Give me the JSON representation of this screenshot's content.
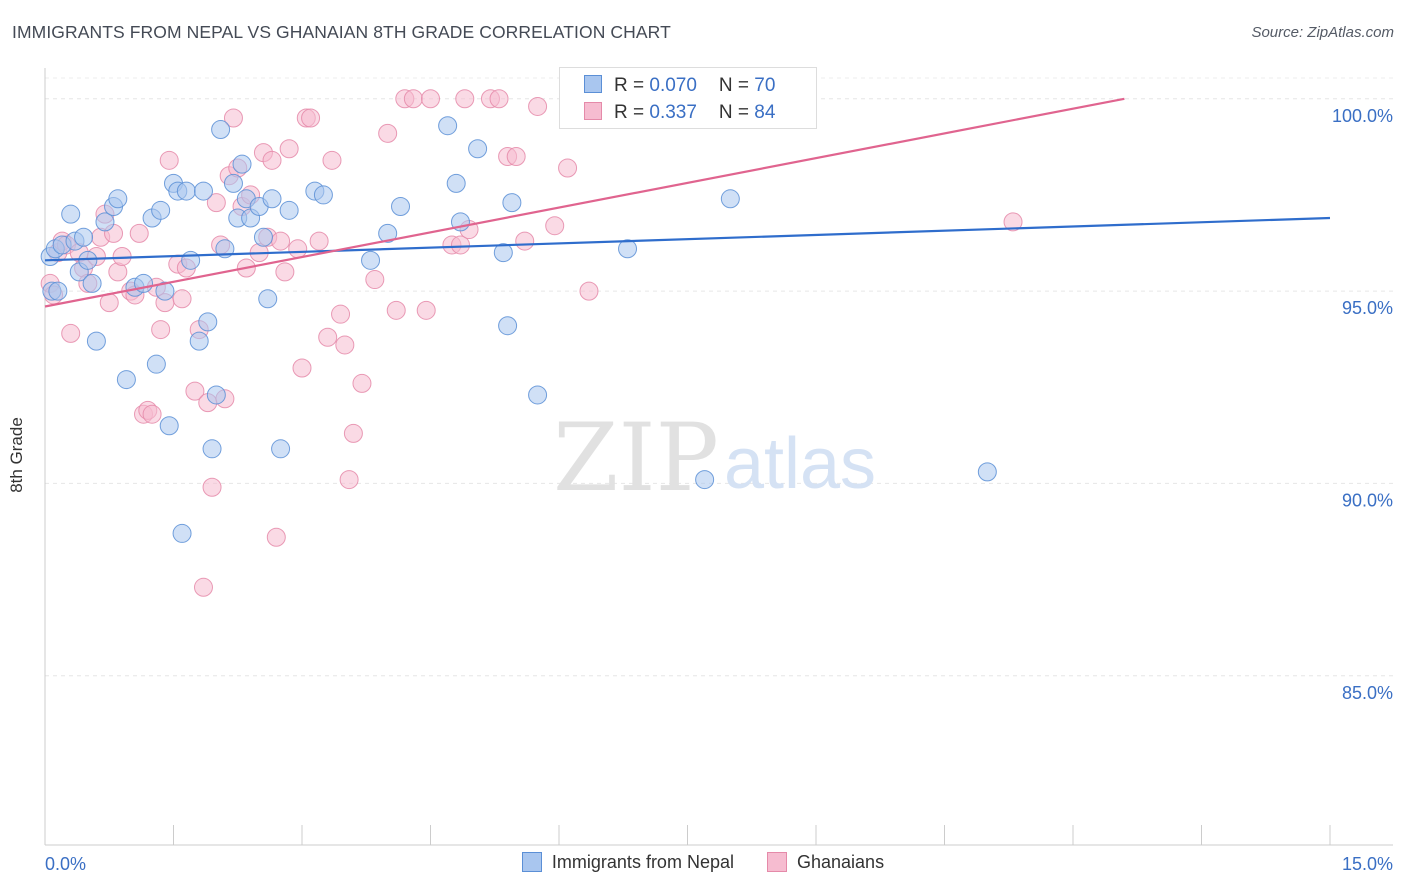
{
  "chart_data": {
    "type": "scatter",
    "title": "IMMIGRANTS FROM NEPAL VS GHANAIAN 8TH GRADE CORRELATION CHART",
    "source": "Source: ZipAtlas.com",
    "xlabel": "",
    "ylabel": "8th Grade",
    "xlim": [
      0.0,
      15.0
    ],
    "ylim": [
      80.6,
      100.8
    ],
    "x_tick_labels": [
      "0.0%",
      "15.0%"
    ],
    "y_ticks": [
      85.0,
      90.0,
      95.0,
      100.0
    ],
    "y_tick_labels": [
      "85.0%",
      "90.0%",
      "95.0%",
      "100.0%"
    ],
    "grid": true,
    "watermark": {
      "zip": "ZIP",
      "atlas": "atlas"
    },
    "stats_box": [
      {
        "r_label": "R = ",
        "r_value": "0.070",
        "n_label": "N = ",
        "n_value": "70"
      },
      {
        "r_label": "R = ",
        "r_value": "0.337",
        "n_label": "N = ",
        "n_value": "84"
      }
    ],
    "series": [
      {
        "name": "Immigrants from Nepal",
        "color": "#5b8fd6",
        "fill": "#a9c6ef",
        "line_color": "#2f6dcc",
        "trend": [
          [
            0.0,
            95.8
          ],
          [
            15.0,
            96.9
          ]
        ],
        "points": [
          [
            0.06,
            95.9
          ],
          [
            0.08,
            95.0
          ],
          [
            0.12,
            96.1
          ],
          [
            0.15,
            95.0
          ],
          [
            0.2,
            96.2
          ],
          [
            0.3,
            97.0
          ],
          [
            0.35,
            96.3
          ],
          [
            0.4,
            95.5
          ],
          [
            0.45,
            96.4
          ],
          [
            0.5,
            95.8
          ],
          [
            0.55,
            95.2
          ],
          [
            0.6,
            93.7
          ],
          [
            0.7,
            96.8
          ],
          [
            0.8,
            97.2
          ],
          [
            0.85,
            97.4
          ],
          [
            0.95,
            92.7
          ],
          [
            1.05,
            95.1
          ],
          [
            1.15,
            95.2
          ],
          [
            1.25,
            96.9
          ],
          [
            1.3,
            93.1
          ],
          [
            1.35,
            97.1
          ],
          [
            1.4,
            95.0
          ],
          [
            1.45,
            91.5
          ],
          [
            1.5,
            97.8
          ],
          [
            1.55,
            97.6
          ],
          [
            1.6,
            88.7
          ],
          [
            1.65,
            97.6
          ],
          [
            1.7,
            95.8
          ],
          [
            1.8,
            93.7
          ],
          [
            1.85,
            97.6
          ],
          [
            1.9,
            94.2
          ],
          [
            1.95,
            90.9
          ],
          [
            2.0,
            92.3
          ],
          [
            2.05,
            99.2
          ],
          [
            2.1,
            96.1
          ],
          [
            2.2,
            97.8
          ],
          [
            2.25,
            96.9
          ],
          [
            2.3,
            98.3
          ],
          [
            2.35,
            97.4
          ],
          [
            2.4,
            96.9
          ],
          [
            2.5,
            97.2
          ],
          [
            2.55,
            96.4
          ],
          [
            2.6,
            94.8
          ],
          [
            2.65,
            97.4
          ],
          [
            2.75,
            90.9
          ],
          [
            2.85,
            97.1
          ],
          [
            3.15,
            97.6
          ],
          [
            3.25,
            97.5
          ],
          [
            3.8,
            95.8
          ],
          [
            4.0,
            96.5
          ],
          [
            4.15,
            97.2
          ],
          [
            4.7,
            99.3
          ],
          [
            4.8,
            97.8
          ],
          [
            4.85,
            96.8
          ],
          [
            5.05,
            98.7
          ],
          [
            5.35,
            96.0
          ],
          [
            5.4,
            94.1
          ],
          [
            5.45,
            97.3
          ],
          [
            5.75,
            92.3
          ],
          [
            6.2,
            100.0
          ],
          [
            6.5,
            99.8
          ],
          [
            6.55,
            100.0
          ],
          [
            6.8,
            96.1
          ],
          [
            7.1,
            100.0
          ],
          [
            7.3,
            100.0
          ],
          [
            7.7,
            90.1
          ],
          [
            7.9,
            100.0
          ],
          [
            7.95,
            100.0
          ],
          [
            8.0,
            97.4
          ],
          [
            11.0,
            90.3
          ]
        ]
      },
      {
        "name": "Ghanaians",
        "color": "#e58aa9",
        "fill": "#f6bcd0",
        "line_color": "#e0648f",
        "trend": [
          [
            0.0,
            94.6
          ],
          [
            12.6,
            100.0
          ]
        ],
        "points": [
          [
            0.06,
            95.2
          ],
          [
            0.1,
            94.9
          ],
          [
            0.15,
            96.0
          ],
          [
            0.2,
            96.3
          ],
          [
            0.25,
            96.2
          ],
          [
            0.3,
            93.9
          ],
          [
            0.4,
            96.0
          ],
          [
            0.45,
            95.6
          ],
          [
            0.5,
            95.2
          ],
          [
            0.6,
            95.9
          ],
          [
            0.65,
            96.4
          ],
          [
            0.7,
            97.0
          ],
          [
            0.75,
            94.7
          ],
          [
            0.8,
            96.5
          ],
          [
            0.85,
            95.5
          ],
          [
            0.9,
            95.9
          ],
          [
            1.0,
            95.0
          ],
          [
            1.05,
            94.9
          ],
          [
            1.1,
            96.5
          ],
          [
            1.15,
            91.8
          ],
          [
            1.2,
            91.9
          ],
          [
            1.25,
            91.8
          ],
          [
            1.3,
            95.1
          ],
          [
            1.35,
            94.0
          ],
          [
            1.4,
            94.7
          ],
          [
            1.45,
            98.4
          ],
          [
            1.55,
            95.7
          ],
          [
            1.6,
            94.8
          ],
          [
            1.65,
            95.6
          ],
          [
            1.75,
            92.4
          ],
          [
            1.8,
            94.0
          ],
          [
            1.85,
            87.3
          ],
          [
            1.9,
            92.1
          ],
          [
            1.95,
            89.9
          ],
          [
            2.0,
            97.3
          ],
          [
            2.05,
            96.2
          ],
          [
            2.1,
            92.2
          ],
          [
            2.15,
            98.0
          ],
          [
            2.2,
            99.5
          ],
          [
            2.25,
            98.2
          ],
          [
            2.3,
            97.2
          ],
          [
            2.35,
            95.6
          ],
          [
            2.4,
            97.5
          ],
          [
            2.5,
            96.0
          ],
          [
            2.55,
            98.6
          ],
          [
            2.6,
            96.4
          ],
          [
            2.65,
            98.4
          ],
          [
            2.7,
            88.6
          ],
          [
            2.75,
            96.3
          ],
          [
            2.8,
            95.5
          ],
          [
            2.85,
            98.7
          ],
          [
            2.95,
            96.1
          ],
          [
            3.0,
            93.0
          ],
          [
            3.05,
            99.5
          ],
          [
            3.1,
            99.5
          ],
          [
            3.2,
            96.3
          ],
          [
            3.3,
            93.8
          ],
          [
            3.35,
            98.4
          ],
          [
            3.45,
            94.4
          ],
          [
            3.5,
            93.6
          ],
          [
            3.55,
            90.1
          ],
          [
            3.6,
            91.3
          ],
          [
            3.7,
            92.6
          ],
          [
            3.85,
            95.3
          ],
          [
            4.0,
            99.1
          ],
          [
            4.1,
            94.5
          ],
          [
            4.2,
            100.0
          ],
          [
            4.3,
            100.0
          ],
          [
            4.45,
            94.5
          ],
          [
            4.5,
            100.0
          ],
          [
            4.75,
            96.2
          ],
          [
            4.85,
            96.2
          ],
          [
            4.9,
            100.0
          ],
          [
            4.95,
            96.6
          ],
          [
            5.2,
            100.0
          ],
          [
            5.3,
            100.0
          ],
          [
            5.4,
            98.5
          ],
          [
            5.5,
            98.5
          ],
          [
            5.6,
            96.3
          ],
          [
            5.75,
            99.8
          ],
          [
            5.95,
            96.7
          ],
          [
            6.1,
            98.2
          ],
          [
            6.35,
            95.0
          ],
          [
            11.3,
            96.8
          ]
        ]
      }
    ]
  }
}
